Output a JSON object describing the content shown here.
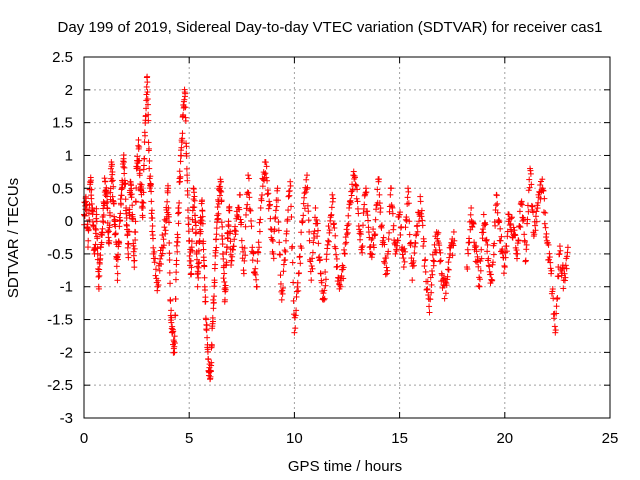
{
  "chart_data": {
    "type": "scatter",
    "title": "Day 199 of 2019, Sidereal Day-to-day VTEC variation (SDTVAR) for receiver cas1",
    "xlabel": "GPS time / hours",
    "ylabel": "SDTVAR / TECUs",
    "xlim": [
      0,
      25
    ],
    "ylim": [
      -3,
      2.5
    ],
    "xticks": [
      0,
      5,
      10,
      15,
      20,
      25
    ],
    "xtick_labels": [
      "0",
      "5",
      "10",
      "15",
      "20",
      "25"
    ],
    "yticks": [
      2.5,
      2,
      1.5,
      1,
      0.5,
      0,
      -0.5,
      -1,
      -1.5,
      -2,
      -2.5,
      -3
    ],
    "ytick_labels": [
      "2.5",
      "2",
      "1.5",
      "1",
      "0.5",
      "0",
      "-0.5",
      "-1",
      "-1.5",
      "-2",
      "-2.5",
      "-3"
    ],
    "grid": true,
    "marker": "plus",
    "series": [
      {
        "name": "SDTVAR",
        "color": "#ff0000",
        "x": [
          0.0,
          0.1,
          0.2,
          0.3,
          0.4,
          0.5,
          0.6,
          0.7,
          0.8,
          0.9,
          1.0,
          1.1,
          1.2,
          1.3,
          1.4,
          1.5,
          1.6,
          1.7,
          1.8,
          1.9,
          2.0,
          2.1,
          2.2,
          2.3,
          2.4,
          2.5,
          2.6,
          2.7,
          2.8,
          2.9,
          3.0,
          3.1,
          3.2,
          3.3,
          3.5,
          3.7,
          3.9,
          4.0,
          4.1,
          4.2,
          4.3,
          4.4,
          4.5,
          4.6,
          4.7,
          4.8,
          4.9,
          5.0,
          5.1,
          5.2,
          5.3,
          5.4,
          5.5,
          5.6,
          5.7,
          5.8,
          5.9,
          6.0,
          6.1,
          6.2,
          6.3,
          6.4,
          6.5,
          6.6,
          6.7,
          6.8,
          6.9,
          7.0,
          7.2,
          7.4,
          7.6,
          7.8,
          8.0,
          8.2,
          8.4,
          8.6,
          8.8,
          9.0,
          9.2,
          9.4,
          9.6,
          9.8,
          10.0,
          10.2,
          10.4,
          10.6,
          10.8,
          11.0,
          11.2,
          11.4,
          11.6,
          11.8,
          12.0,
          12.2,
          12.4,
          12.6,
          12.8,
          13.0,
          13.2,
          13.4,
          13.6,
          13.8,
          14.0,
          14.2,
          14.4,
          14.6,
          14.8,
          15.0,
          15.2,
          15.4,
          15.6,
          15.8,
          16.0,
          16.2,
          16.4,
          16.6,
          16.8,
          17.0,
          17.2,
          17.4,
          17.6,
          18.2,
          18.4,
          18.6,
          18.8,
          19.0,
          19.2,
          19.4,
          19.6,
          19.8,
          20.0,
          20.2,
          20.4,
          20.6,
          20.8,
          21.0,
          21.2,
          21.4,
          21.6,
          21.8,
          22.0,
          22.2,
          22.4,
          22.6,
          22.8,
          23.0
        ],
        "y": [
          0.1,
          0.3,
          -0.3,
          0.6,
          0.2,
          -0.5,
          0.1,
          -1.0,
          -0.4,
          0.0,
          0.6,
          0.2,
          -0.3,
          0.9,
          0.3,
          -0.2,
          -0.8,
          0.0,
          0.5,
          0.9,
          0.2,
          -0.5,
          0.6,
          0.1,
          -0.6,
          0.8,
          1.1,
          0.5,
          0.2,
          1.3,
          2.2,
          0.8,
          0.3,
          -0.5,
          -1.0,
          -0.4,
          0.0,
          0.5,
          -1.2,
          -1.7,
          -2.0,
          -0.6,
          0.2,
          1.0,
          1.6,
          1.9,
          0.7,
          -0.3,
          -0.8,
          0.5,
          0.0,
          -1.0,
          -0.3,
          0.3,
          -0.6,
          -1.5,
          -2.1,
          -2.4,
          -1.6,
          -0.9,
          -0.2,
          0.3,
          0.6,
          -0.5,
          -1.2,
          -0.4,
          0.2,
          -0.6,
          -0.2,
          0.4,
          -0.8,
          0.7,
          -0.4,
          -1.0,
          0.2,
          0.9,
          0.3,
          -0.5,
          0.5,
          -1.2,
          -0.3,
          0.6,
          -1.7,
          -0.8,
          0.0,
          0.7,
          -0.9,
          0.2,
          -0.6,
          -1.2,
          -0.3,
          0.4,
          -0.7,
          -1.0,
          -0.5,
          0.2,
          0.7,
          0.3,
          -0.4,
          0.5,
          -0.5,
          -0.2,
          0.6,
          -0.3,
          -0.8,
          0.5,
          -0.5,
          0.1,
          -0.7,
          0.5,
          -0.9,
          -0.2,
          0.3,
          -0.6,
          -1.3,
          -0.6,
          -0.2,
          -0.8,
          -1.1,
          -0.5,
          -0.3,
          -0.7,
          0.2,
          -0.4,
          -1.0,
          0.1,
          -0.6,
          -0.9,
          0.4,
          -0.3,
          -0.7,
          0.1,
          -0.2,
          -0.5,
          0.3,
          -0.6,
          0.8,
          -0.2,
          0.4,
          0.5,
          -0.3,
          -0.8,
          -1.7,
          -0.5,
          -0.9,
          -0.4
        ]
      }
    ]
  }
}
